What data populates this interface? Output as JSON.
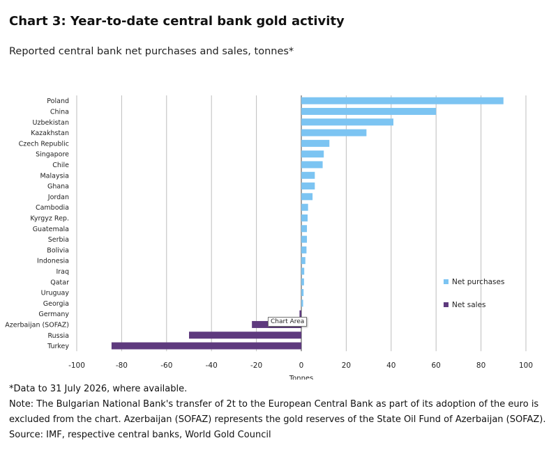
{
  "title": "Chart 3: Year-to-date central bank gold activity",
  "subtitle": "Reported central bank net purchases and sales, tonnes*",
  "tooltip": "Chart Area",
  "chart_data": {
    "type": "bar",
    "orientation": "horizontal",
    "categories": [
      "Poland",
      "China",
      "Uzbekistan",
      "Kazakhstan",
      "Czech Republic",
      "Singapore",
      "Chile",
      "Malaysia",
      "Ghana",
      "Jordan",
      "Cambodia",
      "Kyrgyz Rep.",
      "Guatemala",
      "Serbia",
      "Bolivia",
      "Indonesia",
      "Iraq",
      "Qatar",
      "Uruguay",
      "Georgia",
      "Germany",
      "Azerbaijan (SOFAZ)",
      "Russia",
      "Turkey"
    ],
    "series": [
      {
        "name": "Net purchases",
        "color": "#7cc4f2",
        "values": [
          90,
          60,
          41,
          29,
          12.5,
          10,
          9.5,
          6,
          6,
          5,
          3,
          2.8,
          2.5,
          2.5,
          2.3,
          1.8,
          1.3,
          1.2,
          1,
          0.8,
          null,
          null,
          null,
          null
        ]
      },
      {
        "name": "Net sales",
        "color": "#5e3a7e",
        "values": [
          null,
          null,
          null,
          null,
          null,
          null,
          null,
          null,
          null,
          null,
          null,
          null,
          null,
          null,
          null,
          null,
          null,
          null,
          null,
          null,
          -0.8,
          -22,
          -50,
          -84.5
        ]
      }
    ],
    "xlabel": "Tonnes",
    "xlim": [
      -100,
      100
    ],
    "xticks": [
      -100,
      -80,
      -60,
      -40,
      -20,
      0,
      20,
      40,
      60,
      80,
      100
    ],
    "grid": true,
    "legend_position": "right"
  },
  "notes": [
    "*Data to 31 July 2026, where available.",
    "Note: The Bulgarian National Bank's transfer of 2t to the European Central Bank as part of its adoption of the euro is",
    "excluded from the chart. Azerbaijan (SOFAZ) represents the gold reserves of the State Oil Fund of Azerbaijan (SOFAZ).",
    "Source: IMF, respective central banks, World Gold Council"
  ]
}
